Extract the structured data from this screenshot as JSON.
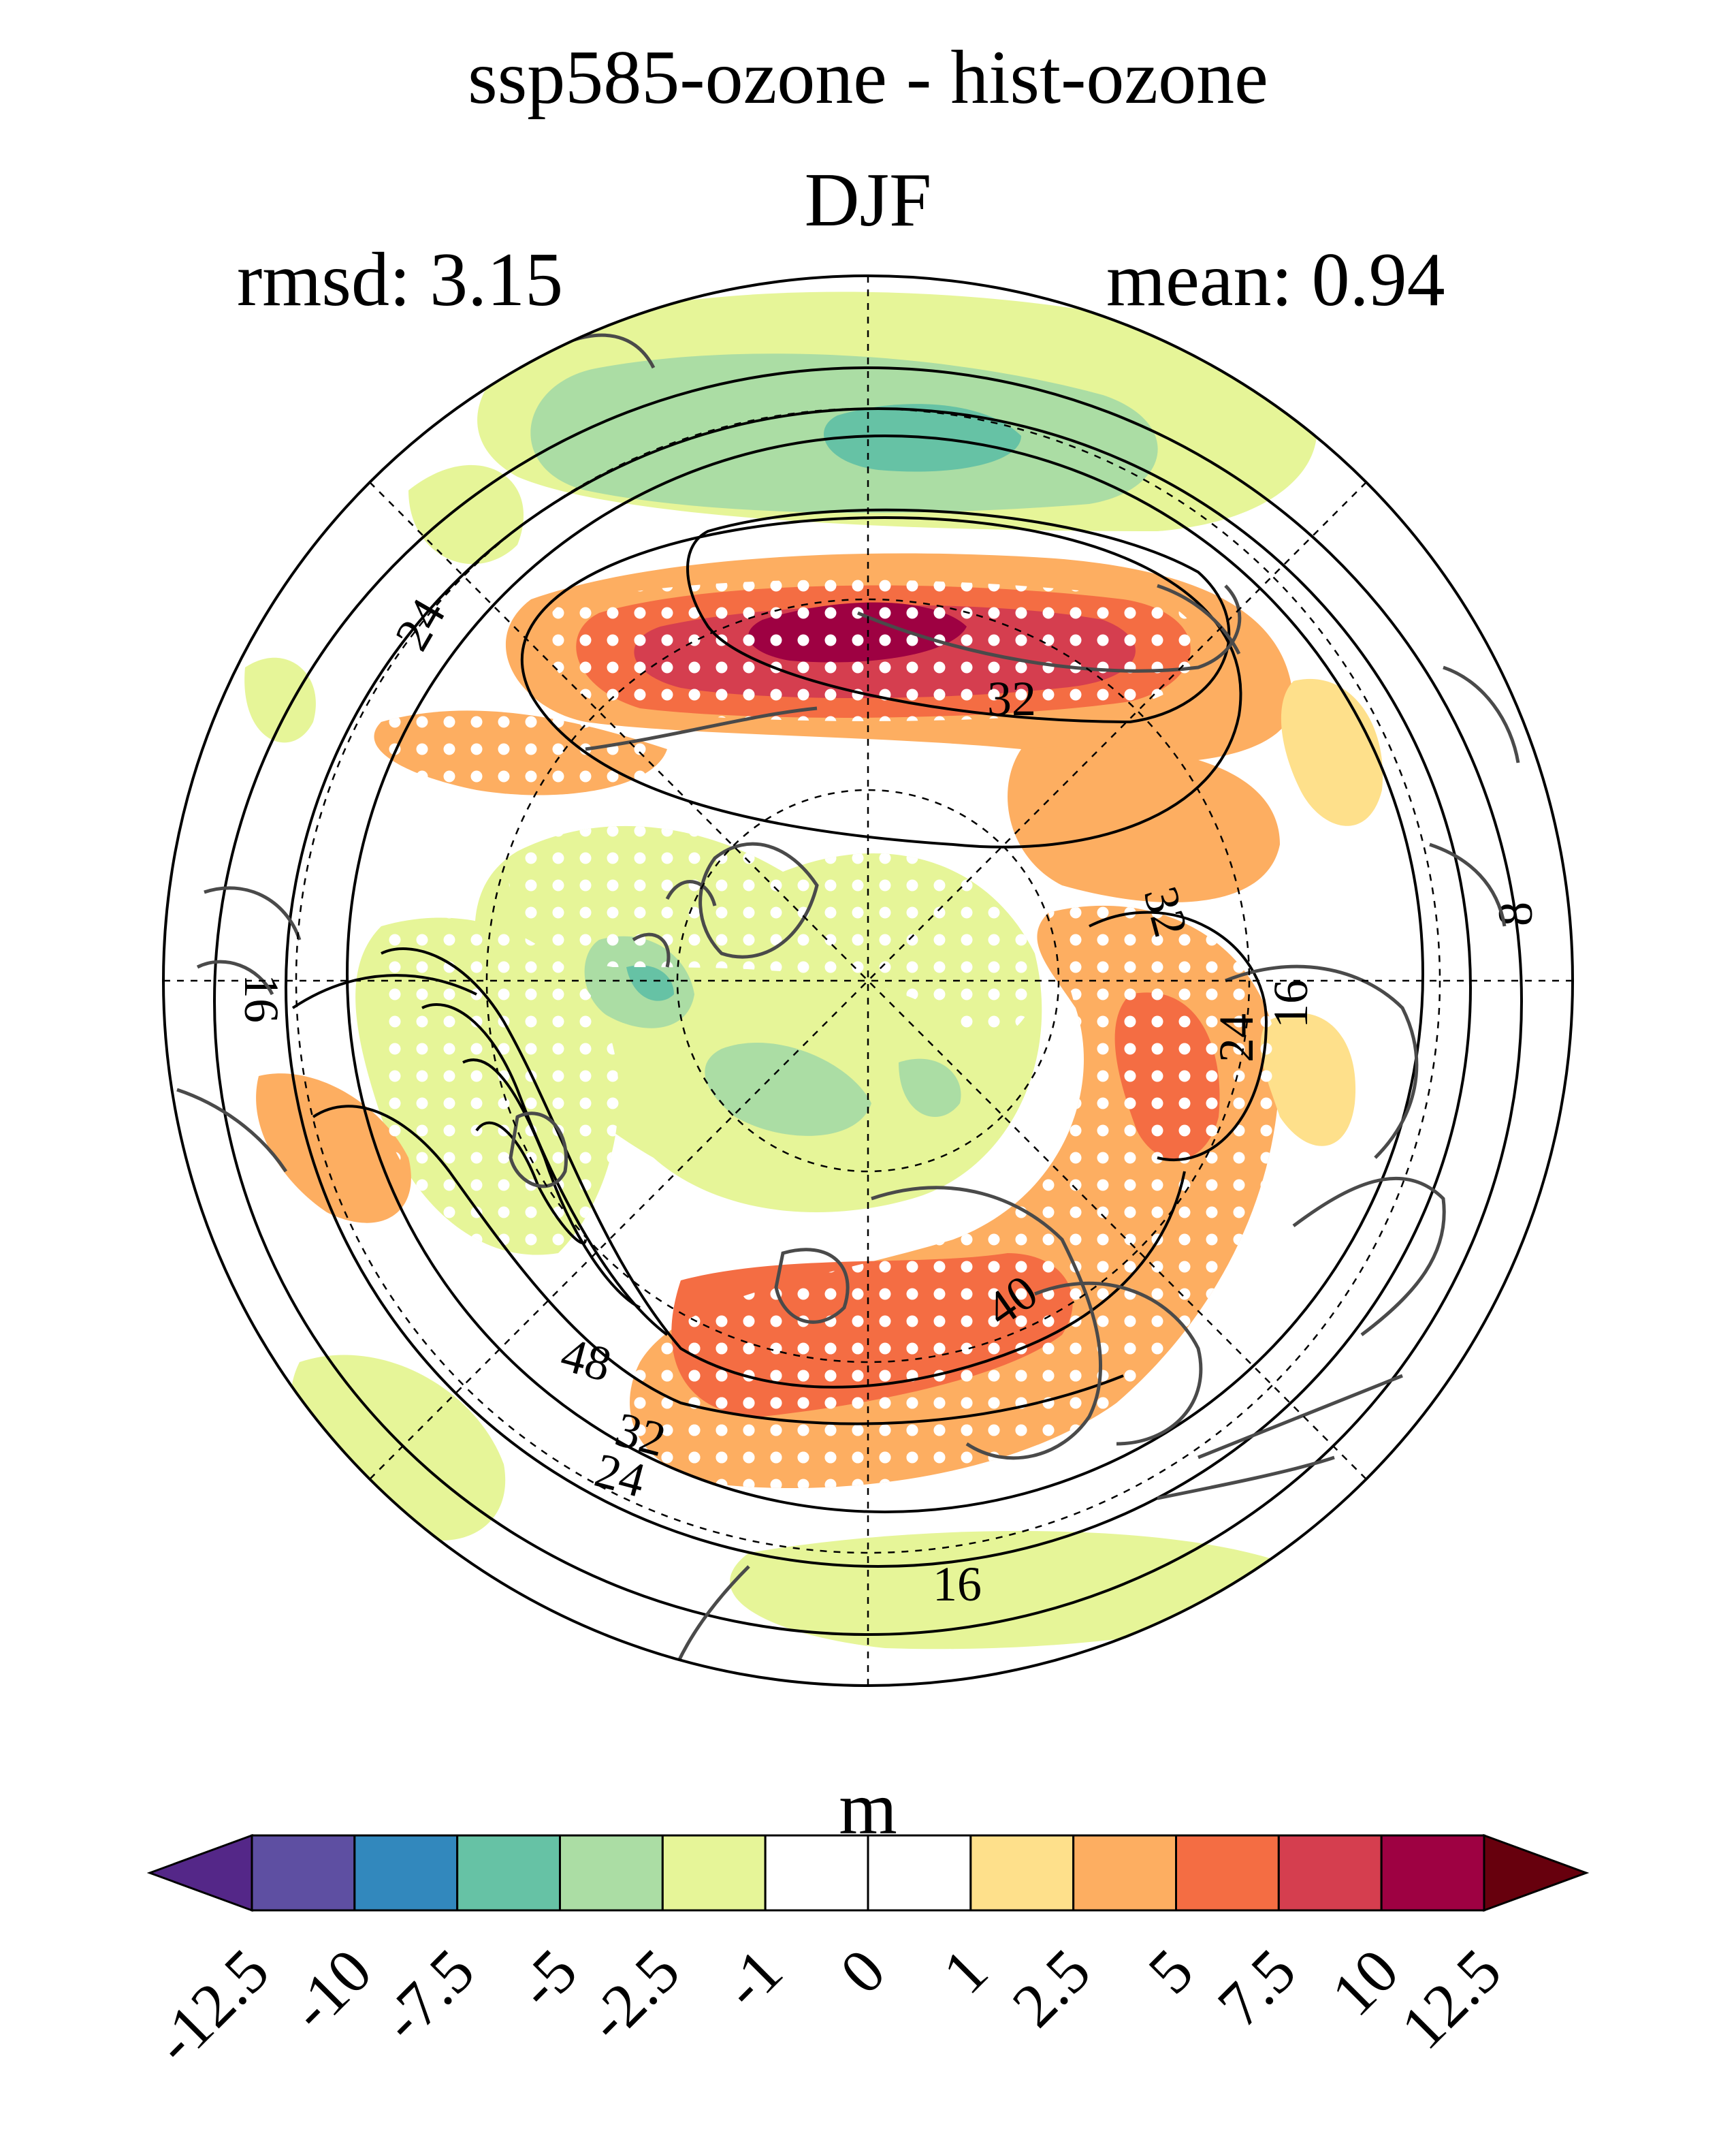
{
  "figure": {
    "title": "ssp585-ozone - hist-ozone",
    "subtitle": "DJF",
    "rmsd_text": "rmsd: 3.15",
    "mean_text": "mean: 0.94",
    "colorbar_unit": "m"
  },
  "colorbar": {
    "levels": [
      "-12.5",
      "-10",
      "-7.5",
      "-5",
      "-2.5",
      "-1",
      "0",
      "1",
      "2.5",
      "5",
      "7.5",
      "10",
      "12.5"
    ],
    "colors": [
      "#5e4fa2",
      "#3288bd",
      "#66c2a5",
      "#abdda4",
      "#e6f598",
      "#ffffff",
      "#ffffff",
      "#fee08b",
      "#fdae61",
      "#f46d43",
      "#d53e4f",
      "#9e0142"
    ],
    "under_color": "#542788",
    "over_color": "#67000d"
  },
  "contour_labels": [
    "24",
    "32",
    "32",
    "16",
    "8",
    "16",
    "24",
    "40",
    "48",
    "32",
    "24",
    "16"
  ],
  "map": {
    "projection": "north-polar-stereographic",
    "stippling": "white dots mark regions of significance"
  }
}
